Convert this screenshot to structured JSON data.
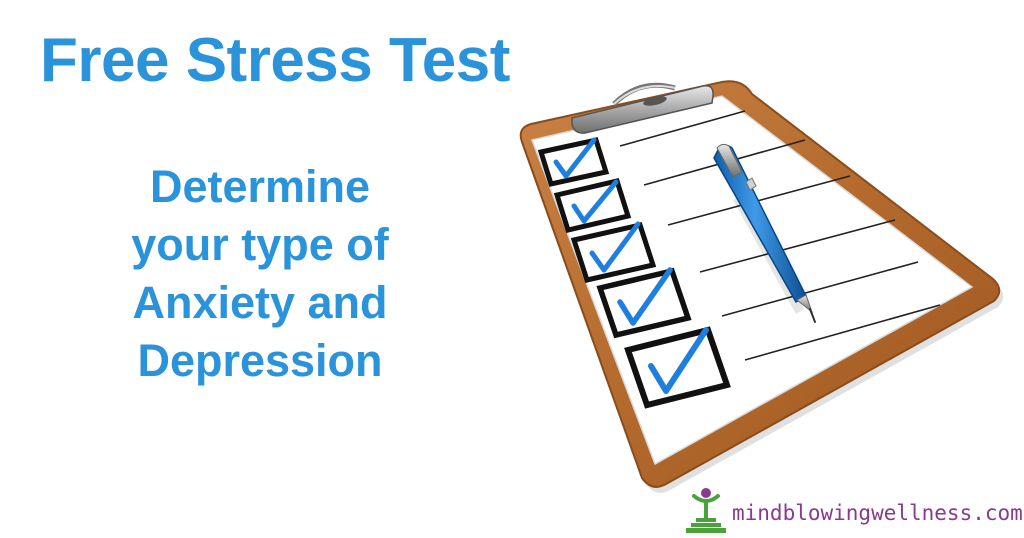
{
  "headline": "Free Stress Test",
  "subheadline": {
    "lines": [
      "Determine",
      "your type of",
      "Anxiety and",
      "Depression"
    ]
  },
  "brand": {
    "text": "mindblowingwellness.com",
    "icon": "person-on-steps-logo"
  },
  "illustration": {
    "icon": "clipboard-checklist",
    "checked_items": 5
  },
  "colors": {
    "headline": "#2a93d9",
    "check": "#1f7fe0",
    "clipboard": "#b86a2c",
    "brand_text": "#8a3a8d",
    "logo_green": "#4aa33a"
  }
}
